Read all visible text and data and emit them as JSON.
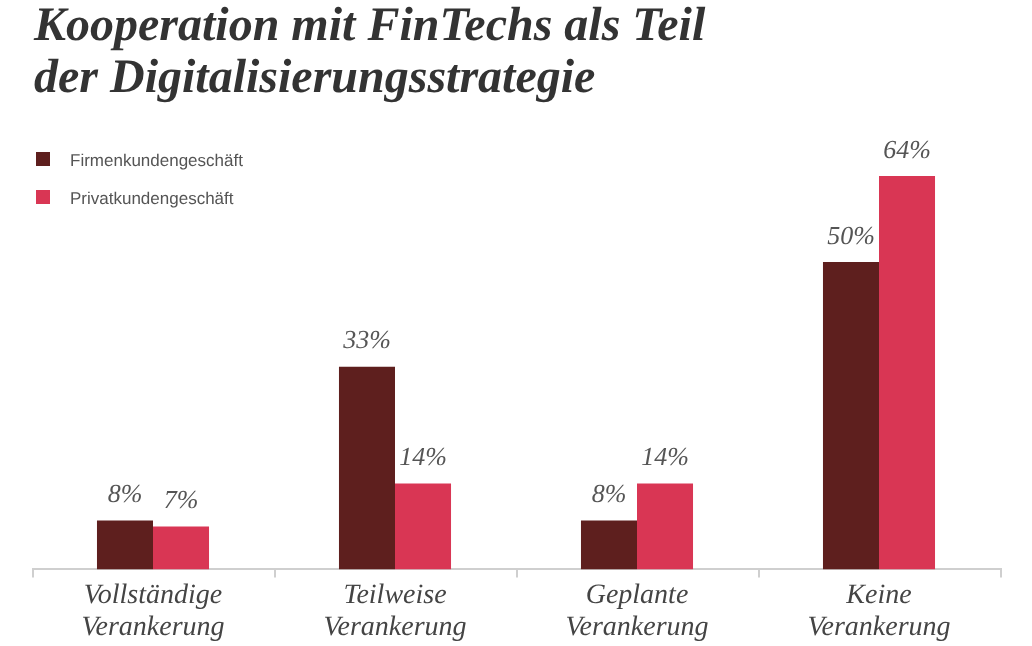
{
  "chart_data": {
    "type": "bar",
    "title": "Kooperation mit FinTechs als Teil der Digitalisierungsstrategie",
    "categories": [
      "Vollständige Verankerung",
      "Teilweise Verankerung",
      "Geplante Verankerung",
      "Keine Verankerung"
    ],
    "series": [
      {
        "name": "Firmenkundengeschäft",
        "color": "#5e1f1e",
        "values": [
          8,
          33,
          8,
          50
        ],
        "value_labels": [
          "8%",
          "33%",
          "8%",
          "50%"
        ]
      },
      {
        "name": "Privatkundengeschäft",
        "color": "#d93654",
        "values": [
          7,
          14,
          14,
          64
        ],
        "value_labels": [
          "7%",
          "14%",
          "14%",
          "64%"
        ]
      }
    ],
    "legend": "top left"
  }
}
